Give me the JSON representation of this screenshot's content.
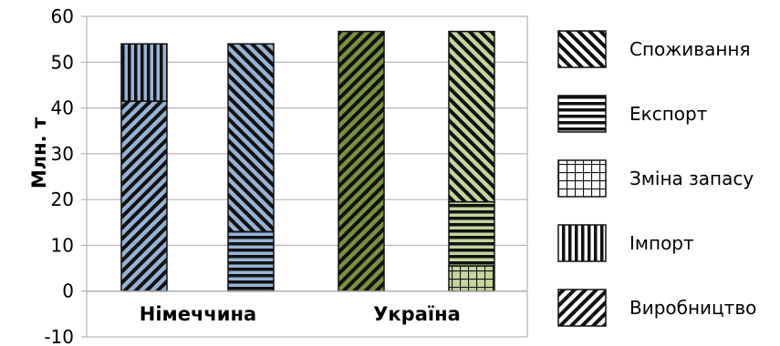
{
  "chart_data": {
    "type": "bar",
    "stacked": true,
    "ylabel": "Млн. т",
    "ylim": [
      -10,
      60
    ],
    "yticks": [
      -10,
      0,
      10,
      20,
      30,
      40,
      50,
      60
    ],
    "grid": true,
    "legend_position": "right",
    "categories": [
      "Німеччина",
      "Україна"
    ],
    "bars": [
      {
        "category": "Німеччина",
        "side": "supply",
        "color": "#95b3d7",
        "segments": [
          {
            "series": "Виробництво",
            "value": 41.5
          },
          {
            "series": "Імпорт",
            "value": 12.5
          }
        ]
      },
      {
        "category": "Німеччина",
        "side": "use",
        "color": "#95b3d7",
        "segments": [
          {
            "series": "Експорт",
            "value": 13
          },
          {
            "series": "Споживання",
            "value": 41
          }
        ]
      },
      {
        "category": "Україна",
        "side": "supply",
        "color": "#77933c",
        "segments": [
          {
            "series": "Виробництво",
            "value": 56.7
          }
        ]
      },
      {
        "category": "Україна",
        "side": "use",
        "color": "#c3d69b",
        "segments": [
          {
            "series": "Зміна запасу",
            "value": 5.5
          },
          {
            "series": "Експорт",
            "value": 14
          },
          {
            "series": "Споживання",
            "value": 37.2
          }
        ]
      }
    ],
    "legend": [
      {
        "name": "Споживання",
        "pattern": "diag-back"
      },
      {
        "name": "Експорт",
        "pattern": "horizontal"
      },
      {
        "name": "Зміна запасу",
        "pattern": "grid"
      },
      {
        "name": "Імпорт",
        "pattern": "vertical"
      },
      {
        "name": "Виробництво",
        "pattern": "diag-fwd"
      }
    ]
  }
}
